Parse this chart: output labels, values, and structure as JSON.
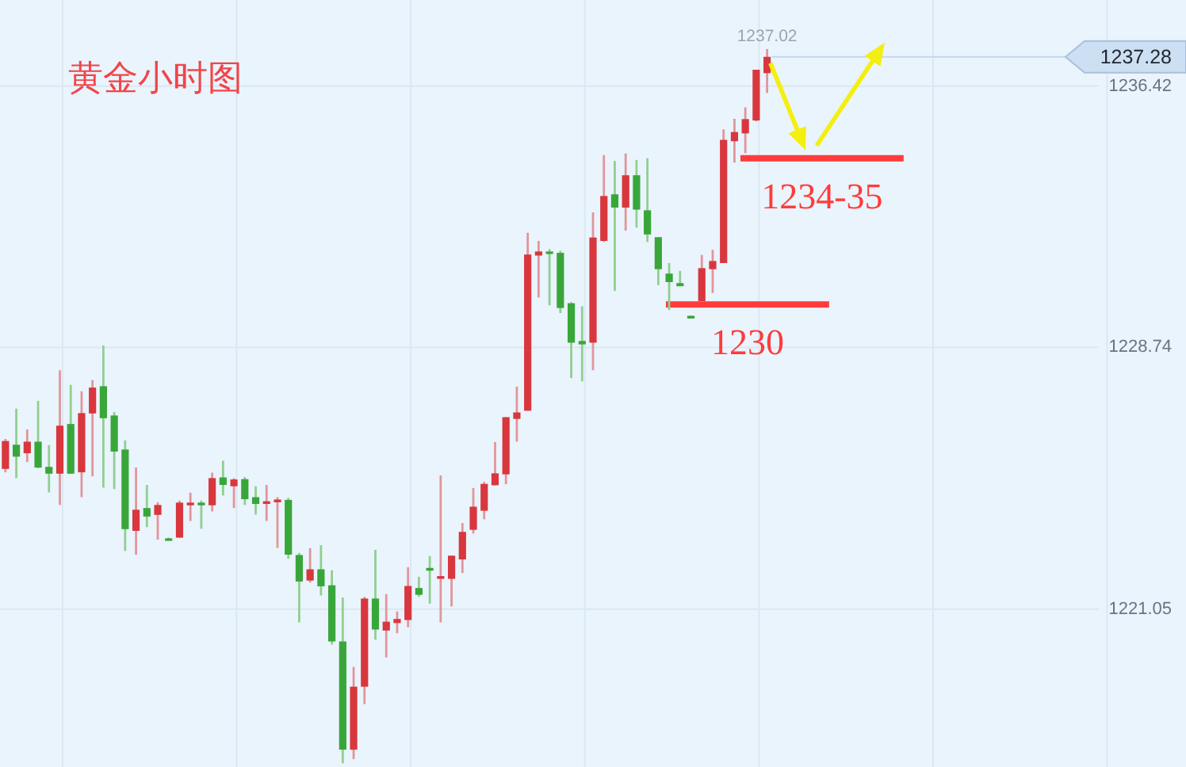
{
  "chart_data": {
    "type": "candlestick",
    "title": "黄金小时图",
    "categories": [
      null,
      null,
      null,
      null,
      null,
      null,
      null,
      null,
      null,
      null,
      null,
      null,
      null,
      null,
      null,
      null,
      null,
      null,
      null,
      null,
      null,
      null,
      null,
      null,
      null,
      null,
      null,
      null,
      null,
      null,
      null,
      null,
      null,
      null,
      null,
      null,
      null,
      null,
      null,
      null,
      null,
      null,
      null,
      null,
      null,
      null,
      null,
      null,
      null,
      null,
      null,
      null,
      null,
      null,
      null,
      null,
      null,
      null,
      null,
      null,
      null,
      null,
      null,
      null,
      null,
      null,
      null,
      null,
      null,
      null,
      null,
      null,
      null,
      null,
      null,
      null,
      null,
      null,
      null,
      null,
      null,
      null,
      null,
      null,
      null,
      null,
      null,
      null,
      null,
      null,
      null,
      null,
      null,
      null,
      null,
      null,
      null,
      null,
      null,
      null,
      null,
      null,
      null,
      null,
      null,
      null,
      null,
      null,
      null
    ],
    "ohlc": [
      [
        1225.17,
        1226.05,
        1225.07,
        1225.99
      ],
      [
        1225.88,
        1226.94,
        1224.9,
        1225.53
      ],
      [
        1225.63,
        1226.33,
        1225.37,
        1225.97
      ],
      [
        1225.97,
        1227.17,
        1225.19,
        1225.21
      ],
      [
        1225.23,
        1225.87,
        1224.48,
        1225.03
      ],
      [
        1225.03,
        1228.07,
        1224.11,
        1226.44
      ],
      [
        1226.49,
        1227.64,
        1225.03,
        1225.03
      ],
      [
        1225.07,
        1227.45,
        1224.34,
        1226.81
      ],
      [
        1226.8,
        1227.78,
        1224.95,
        1227.56
      ],
      [
        1227.6,
        1228.8,
        1224.62,
        1226.66
      ],
      [
        1226.74,
        1226.84,
        1224.58,
        1225.68
      ],
      [
        1225.74,
        1226.01,
        1222.76,
        1223.4
      ],
      [
        1223.35,
        1225.21,
        1222.65,
        1223.97
      ],
      [
        1224.02,
        1224.7,
        1223.46,
        1223.77
      ],
      [
        1223.82,
        1224.19,
        1223.09,
        1224.11
      ],
      [
        1223.13,
        1223.15,
        1223.06,
        1223.07
      ],
      [
        1223.15,
        1224.24,
        1223.15,
        1224.18
      ],
      [
        1224.1,
        1224.47,
        1223.64,
        1224.18
      ],
      [
        1224.18,
        1224.24,
        1223.41,
        1224.1
      ],
      [
        1224.1,
        1225.06,
        1223.92,
        1224.9
      ],
      [
        1224.92,
        1225.41,
        1224.39,
        1224.7
      ],
      [
        1224.66,
        1224.9,
        1224.02,
        1224.86
      ],
      [
        1224.87,
        1224.93,
        1224.11,
        1224.28
      ],
      [
        1224.34,
        1224.66,
        1223.83,
        1224.14
      ],
      [
        1224.14,
        1224.7,
        1223.64,
        1224.22
      ],
      [
        1224.19,
        1224.34,
        1222.85,
        1224.27
      ],
      [
        1224.26,
        1224.32,
        1222.53,
        1222.65
      ],
      [
        1222.64,
        1222.7,
        1220.66,
        1221.86
      ],
      [
        1221.89,
        1222.84,
        1221.83,
        1222.22
      ],
      [
        1222.22,
        1222.93,
        1221.45,
        1221.72
      ],
      [
        1221.75,
        1222.19,
        1220.01,
        1220.1
      ],
      [
        1220.1,
        1221.39,
        1216.52,
        1216.92
      ],
      [
        1216.92,
        1219.35,
        1216.64,
        1218.77
      ],
      [
        1218.77,
        1221.41,
        1218.26,
        1221.36
      ],
      [
        1221.36,
        1222.79,
        1220.15,
        1220.45
      ],
      [
        1220.42,
        1221.49,
        1219.63,
        1220.68
      ],
      [
        1220.64,
        1220.98,
        1220.34,
        1220.76
      ],
      [
        1220.73,
        1222.28,
        1220.52,
        1221.73
      ],
      [
        1221.67,
        1222.0,
        1221.41,
        1221.47
      ],
      [
        1222.26,
        1222.61,
        1221.21,
        1222.18
      ],
      [
        1221.94,
        1224.98,
        1220.66,
        1222.02
      ],
      [
        1221.94,
        1222.62,
        1221.13,
        1222.62
      ],
      [
        1222.51,
        1223.58,
        1222.11,
        1223.32
      ],
      [
        1223.38,
        1224.61,
        1223.27,
        1224.06
      ],
      [
        1223.94,
        1224.79,
        1223.69,
        1224.73
      ],
      [
        1224.69,
        1225.96,
        1224.69,
        1225.04
      ],
      [
        1225.01,
        1226.69,
        1224.72,
        1226.69
      ],
      [
        1226.64,
        1227.59,
        1225.97,
        1226.83
      ],
      [
        1226.88,
        1232.11,
        1226.88,
        1231.47
      ],
      [
        1231.44,
        1231.87,
        1230.21,
        1231.56
      ],
      [
        1231.56,
        1231.63,
        1229.98,
        1231.49
      ],
      [
        1231.52,
        1231.58,
        1229.75,
        1229.9
      ],
      [
        1230.04,
        1230.07,
        1227.84,
        1228.88
      ],
      [
        1228.93,
        1229.95,
        1227.74,
        1228.83
      ],
      [
        1228.88,
        1232.71,
        1228.07,
        1231.97
      ],
      [
        1231.87,
        1234.39,
        1231.84,
        1233.19
      ],
      [
        1233.24,
        1234.22,
        1230.4,
        1232.85
      ],
      [
        1232.85,
        1234.44,
        1232.17,
        1233.8
      ],
      [
        1233.8,
        1234.25,
        1232.26,
        1232.79
      ],
      [
        1232.77,
        1234.3,
        1231.84,
        1232.06
      ],
      [
        1231.98,
        1231.98,
        1230.57,
        1231.04
      ],
      [
        1230.91,
        1231.22,
        1229.84,
        1230.66
      ],
      [
        1230.63,
        1230.99,
        1230.54,
        1230.54
      ],
      [
        1229.67,
        1229.67,
        1229.59,
        1229.59
      ],
      [
        1230.1,
        1231.46,
        1230.1,
        1231.07
      ],
      [
        1231.04,
        1231.61,
        1230.34,
        1231.28
      ],
      [
        1231.22,
        1235.15,
        1231.22,
        1234.84
      ],
      [
        1234.8,
        1235.46,
        1234.17,
        1235.07
      ],
      [
        1235.03,
        1235.8,
        1234.45,
        1235.45
      ],
      [
        1235.41,
        1236.9,
        1235.38,
        1236.9
      ],
      [
        1236.8,
        1237.51,
        1236.22,
        1237.28
      ],
      null,
      null,
      null,
      null,
      null,
      null,
      null,
      null,
      null,
      null,
      null,
      null,
      null,
      null,
      null,
      null,
      null,
      null,
      null,
      null,
      null,
      null,
      null,
      null,
      null,
      null,
      null,
      null,
      null,
      null,
      null,
      null,
      null,
      null,
      null,
      null,
      null,
      null
    ],
    "ylim": [
      1216.41,
      1238.95
    ],
    "yticks": [
      1221.05,
      1228.74,
      1236.42
    ],
    "grid": true,
    "ref_lines": [
      {
        "axis": "y",
        "value": 1234.3,
        "label": "1234-35",
        "color": "#ff3b3b"
      },
      {
        "axis": "y",
        "value": 1230,
        "label": "1230",
        "color": "#ff3b3b"
      }
    ],
    "annotations": [
      "1237.02",
      "1237.28"
    ]
  }
}
